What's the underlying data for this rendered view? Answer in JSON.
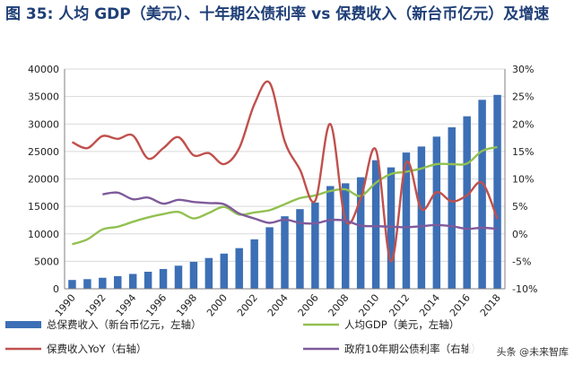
{
  "title": "图 35: 人均 GDP（美元）、十年期公债利率 vs 保费收入（新台币亿元）及增速",
  "watermark": "头条 @未来智库",
  "colors": {
    "bar": "#3c6fb5",
    "gdp": "#92c050",
    "yoy": "#c0504d",
    "bond": "#7e5a9b",
    "grid": "#d9d9d9",
    "axis": "#7f7f7f"
  },
  "chart_data": {
    "type": "bar+line",
    "title": "人均 GDP（美元）、十年期公债利率 vs 保费收入（新台币亿元）及增速",
    "x": [
      1990,
      1991,
      1992,
      1993,
      1994,
      1995,
      1996,
      1997,
      1998,
      1999,
      2000,
      2001,
      2002,
      2003,
      2004,
      2005,
      2006,
      2007,
      2008,
      2009,
      2010,
      2011,
      2012,
      2013,
      2014,
      2015,
      2016,
      2017,
      2018
    ],
    "x_tick_labels": [
      "1990",
      "1992",
      "1994",
      "1996",
      "1998",
      "2000",
      "2002",
      "2004",
      "2006",
      "2008",
      "2010",
      "2012",
      "2014",
      "2016",
      "2018"
    ],
    "left_axis": {
      "ylim": [
        0,
        40000
      ],
      "ticks": [
        "0",
        "5000",
        "10000",
        "15000",
        "20000",
        "25000",
        "30000",
        "35000",
        "40000"
      ]
    },
    "right_axis": {
      "ylim": [
        -10,
        30
      ],
      "ticks": [
        "-10%",
        "-5%",
        "0%",
        "5%",
        "10%",
        "15%",
        "20%",
        "25%",
        "30%"
      ]
    },
    "series": [
      {
        "name": "总保费收入（新台币亿元，左轴）",
        "type": "bar",
        "axis": "left",
        "values": [
          1600,
          1750,
          2000,
          2300,
          2700,
          3100,
          3600,
          4200,
          4900,
          5600,
          6400,
          7400,
          9000,
          11200,
          13200,
          14500,
          15700,
          18700,
          19200,
          20300,
          23400,
          22100,
          24800,
          25900,
          27700,
          29400,
          31400,
          34400,
          35300
        ]
      },
      {
        "name": "人均GDP（美元，左轴）",
        "type": "line",
        "axis": "left",
        "values": [
          8100,
          9000,
          10800,
          11300,
          12200,
          13000,
          13600,
          14000,
          12800,
          13800,
          14900,
          13500,
          13900,
          14300,
          15400,
          16500,
          17000,
          17800,
          18100,
          16900,
          19300,
          20900,
          21300,
          21900,
          22700,
          22700,
          22800,
          25100,
          25800
        ]
      },
      {
        "name": "保费收入YoY（右轴）",
        "type": "line",
        "axis": "right",
        "values": [
          16.7,
          15.6,
          17.8,
          17.3,
          17.9,
          13.7,
          15.6,
          17.6,
          14.3,
          14.7,
          12.7,
          15.6,
          23.6,
          27.5,
          16.8,
          11.7,
          6.0,
          20.0,
          2.5,
          6.4,
          15.3,
          -5.0,
          13.0,
          4.5,
          7.6,
          5.9,
          7.0,
          9.3,
          2.7
        ]
      },
      {
        "name": "政府10年期公债利率（右轴）",
        "type": "line",
        "axis": "right",
        "values": [
          null,
          null,
          7.2,
          7.5,
          6.3,
          6.6,
          5.5,
          6.2,
          5.8,
          5.6,
          5.4,
          3.7,
          2.8,
          2.0,
          2.6,
          2.0,
          1.9,
          2.5,
          2.4,
          1.5,
          1.4,
          1.3,
          1.2,
          1.4,
          1.6,
          1.4,
          0.9,
          1.1,
          0.9
        ]
      }
    ],
    "legend": [
      "总保费收入（新台币亿元，左轴）",
      "人均GDP（美元，左轴）",
      "保费收入YoY（右轴）",
      "政府10年期公债利率（右轴）"
    ]
  }
}
